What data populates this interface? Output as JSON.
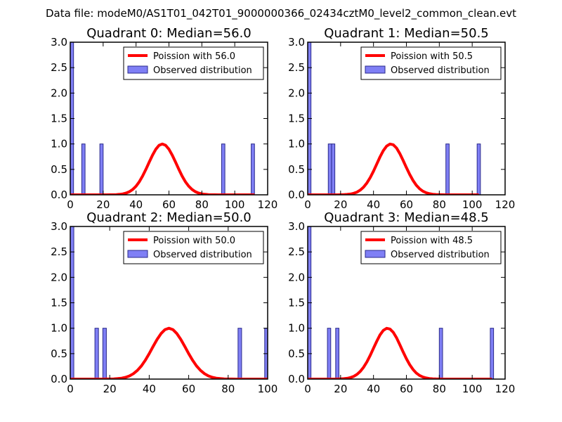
{
  "figure": {
    "suptitle": "Data file: modeM0/AS1T01_042T01_9000000366_02434cztM0_level2_common_clean.evt"
  },
  "chart_data": [
    {
      "type": "bar",
      "title": "Quadrant 0: Median=56.0",
      "xlim": [
        0,
        120
      ],
      "ylim": [
        0,
        3.0
      ],
      "xticks": [
        0,
        20,
        40,
        60,
        80,
        100,
        120
      ],
      "yticks": [
        "0.0",
        "0.5",
        "1.0",
        "1.5",
        "2.0",
        "2.5",
        "3.0"
      ],
      "bin_width": 2,
      "bars": [
        {
          "x": 0,
          "count": 3
        },
        {
          "x": 7,
          "count": 1
        },
        {
          "x": 18,
          "count": 1
        },
        {
          "x": 92,
          "count": 1
        },
        {
          "x": 110,
          "count": 1
        }
      ],
      "curve": {
        "mean": 56.0,
        "sigma": 8.5,
        "xrange": [
          0,
          112
        ]
      },
      "legend": {
        "curve_label": "Poission with 56.0",
        "bar_label": "Observed distribution"
      }
    },
    {
      "type": "bar",
      "title": "Quadrant 1: Median=50.5",
      "xlim": [
        0,
        120
      ],
      "ylim": [
        0,
        3.0
      ],
      "xticks": [
        0,
        20,
        40,
        60,
        80,
        100,
        120
      ],
      "yticks": [
        "0.0",
        "0.5",
        "1.0",
        "1.5",
        "2.0",
        "2.5",
        "3.0"
      ],
      "bin_width": 2,
      "bars": [
        {
          "x": 0,
          "count": 3
        },
        {
          "x": 12.5,
          "count": 1
        },
        {
          "x": 14.5,
          "count": 1
        },
        {
          "x": 84,
          "count": 1
        },
        {
          "x": 103,
          "count": 1
        }
      ],
      "curve": {
        "mean": 50.5,
        "sigma": 8.5,
        "xrange": [
          0,
          105
        ]
      },
      "legend": {
        "curve_label": "Poission with 50.5",
        "bar_label": "Observed distribution"
      }
    },
    {
      "type": "bar",
      "title": "Quadrant 2: Median=50.0",
      "xlim": [
        0,
        100
      ],
      "ylim": [
        0,
        3.0
      ],
      "xticks": [
        0,
        20,
        40,
        60,
        80,
        100
      ],
      "yticks": [
        "0.0",
        "0.5",
        "1.0",
        "1.5",
        "2.0",
        "2.5",
        "3.0"
      ],
      "bin_width": 1.8,
      "bars": [
        {
          "x": 0,
          "count": 3
        },
        {
          "x": 12.5,
          "count": 1
        },
        {
          "x": 16.5,
          "count": 1
        },
        {
          "x": 85,
          "count": 1
        },
        {
          "x": 98.5,
          "count": 1
        }
      ],
      "curve": {
        "mean": 50.0,
        "sigma": 8.5,
        "xrange": [
          0,
          100
        ]
      },
      "legend": {
        "curve_label": "Poission with 50.0",
        "bar_label": "Observed distribution"
      }
    },
    {
      "type": "bar",
      "title": "Quadrant 3: Median=48.5",
      "xlim": [
        0,
        120
      ],
      "ylim": [
        0,
        3.0
      ],
      "xticks": [
        0,
        20,
        40,
        60,
        80,
        100,
        120
      ],
      "yticks": [
        "0.0",
        "0.5",
        "1.0",
        "1.5",
        "2.0",
        "2.5",
        "3.0"
      ],
      "bin_width": 2,
      "bars": [
        {
          "x": 0,
          "count": 3
        },
        {
          "x": 12,
          "count": 1
        },
        {
          "x": 17,
          "count": 1
        },
        {
          "x": 80,
          "count": 1
        },
        {
          "x": 111,
          "count": 1
        }
      ],
      "curve": {
        "mean": 48.5,
        "sigma": 8.5,
        "xrange": [
          0,
          113
        ]
      },
      "legend": {
        "curve_label": "Poission with 48.5",
        "bar_label": "Observed distribution"
      }
    }
  ]
}
